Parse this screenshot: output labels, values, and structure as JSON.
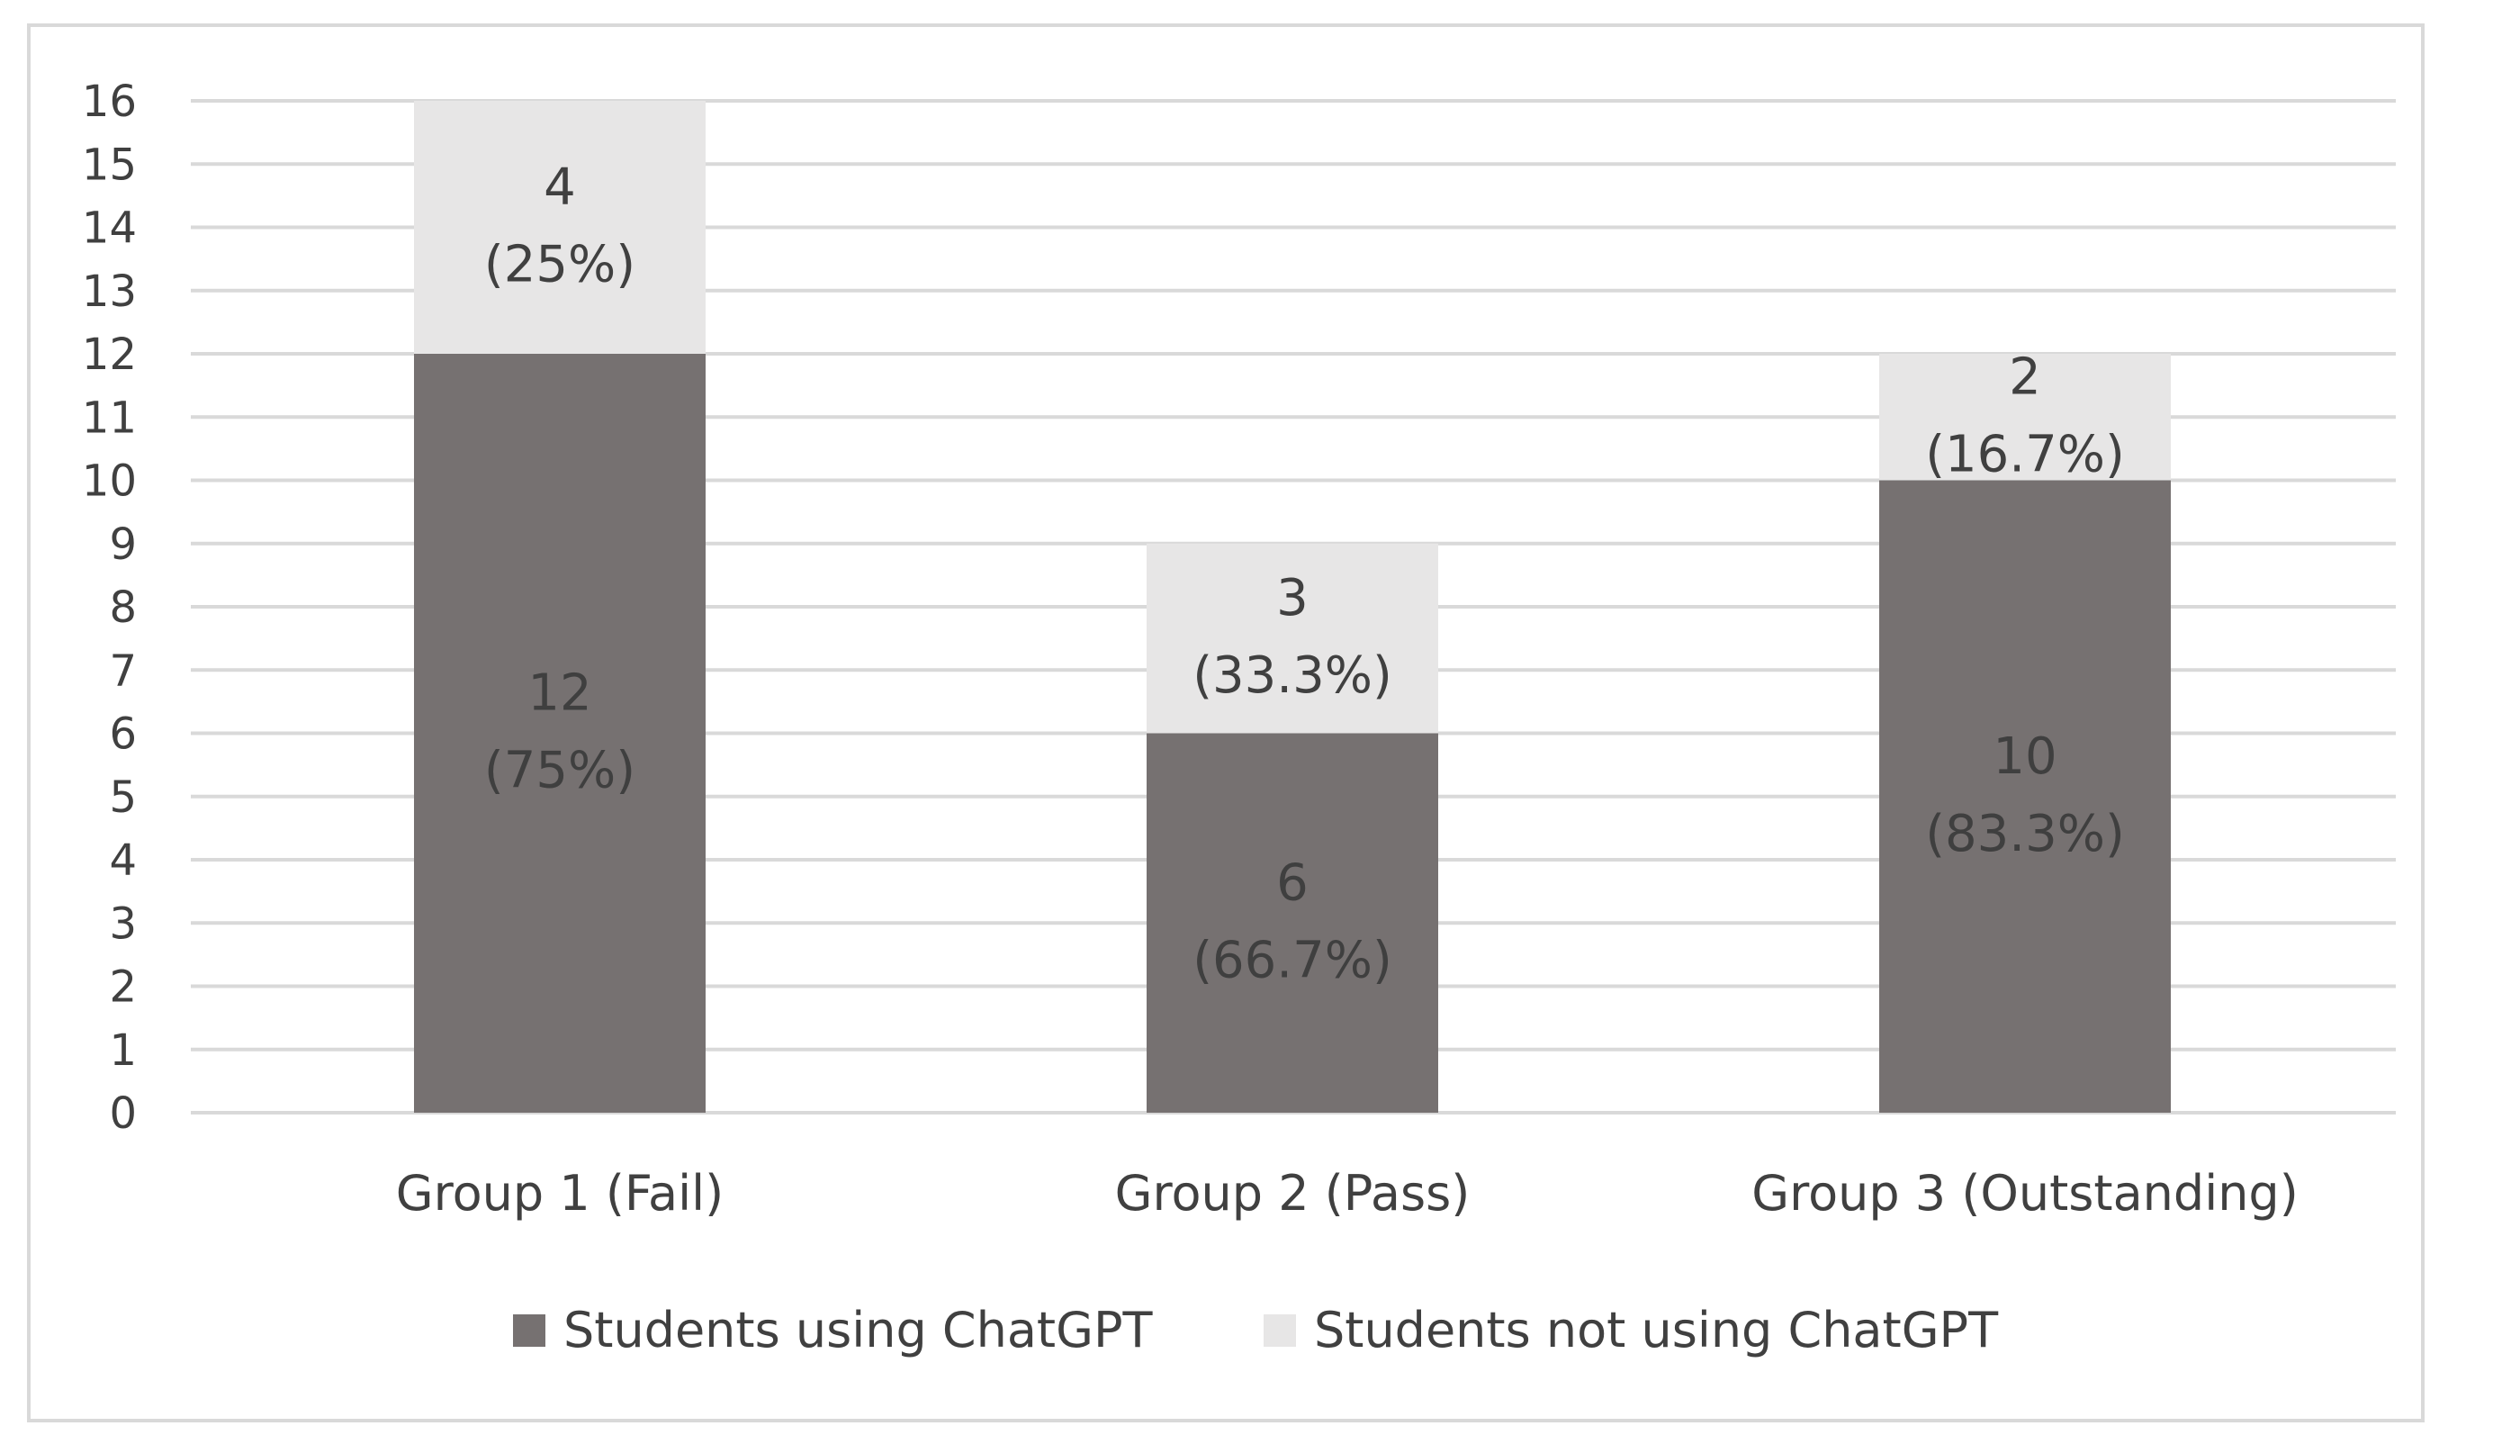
{
  "chart_data": {
    "type": "bar",
    "stacked": true,
    "categories": [
      "Group 1 (Fail)",
      "Group 2 (Pass)",
      "Group 3 (Outstanding)"
    ],
    "series": [
      {
        "name": "Students using ChatGPT",
        "values": [
          12,
          6,
          10
        ],
        "labels": [
          [
            "12",
            "(75%)"
          ],
          [
            "6",
            "(66.7%)"
          ],
          [
            "10",
            "(83.3%)"
          ]
        ],
        "color": "#767171",
        "label_color": "#3f3f3f"
      },
      {
        "name": "Students not using ChatGPT",
        "values": [
          4,
          3,
          2
        ],
        "labels": [
          [
            "4",
            "(25%)"
          ],
          [
            "3",
            "(33.3%)"
          ],
          [
            "2",
            "(16.7%)"
          ]
        ],
        "color": "#e7e6e6",
        "label_color": "#404040"
      }
    ],
    "ylim": [
      0,
      16
    ],
    "yticks": [
      0,
      1,
      2,
      3,
      4,
      5,
      6,
      7,
      8,
      9,
      10,
      11,
      12,
      13,
      14,
      15,
      16
    ],
    "grid": true,
    "grid_color": "#d9d9d9",
    "legend": "bottom",
    "title": "",
    "xlabel": "",
    "ylabel": ""
  }
}
